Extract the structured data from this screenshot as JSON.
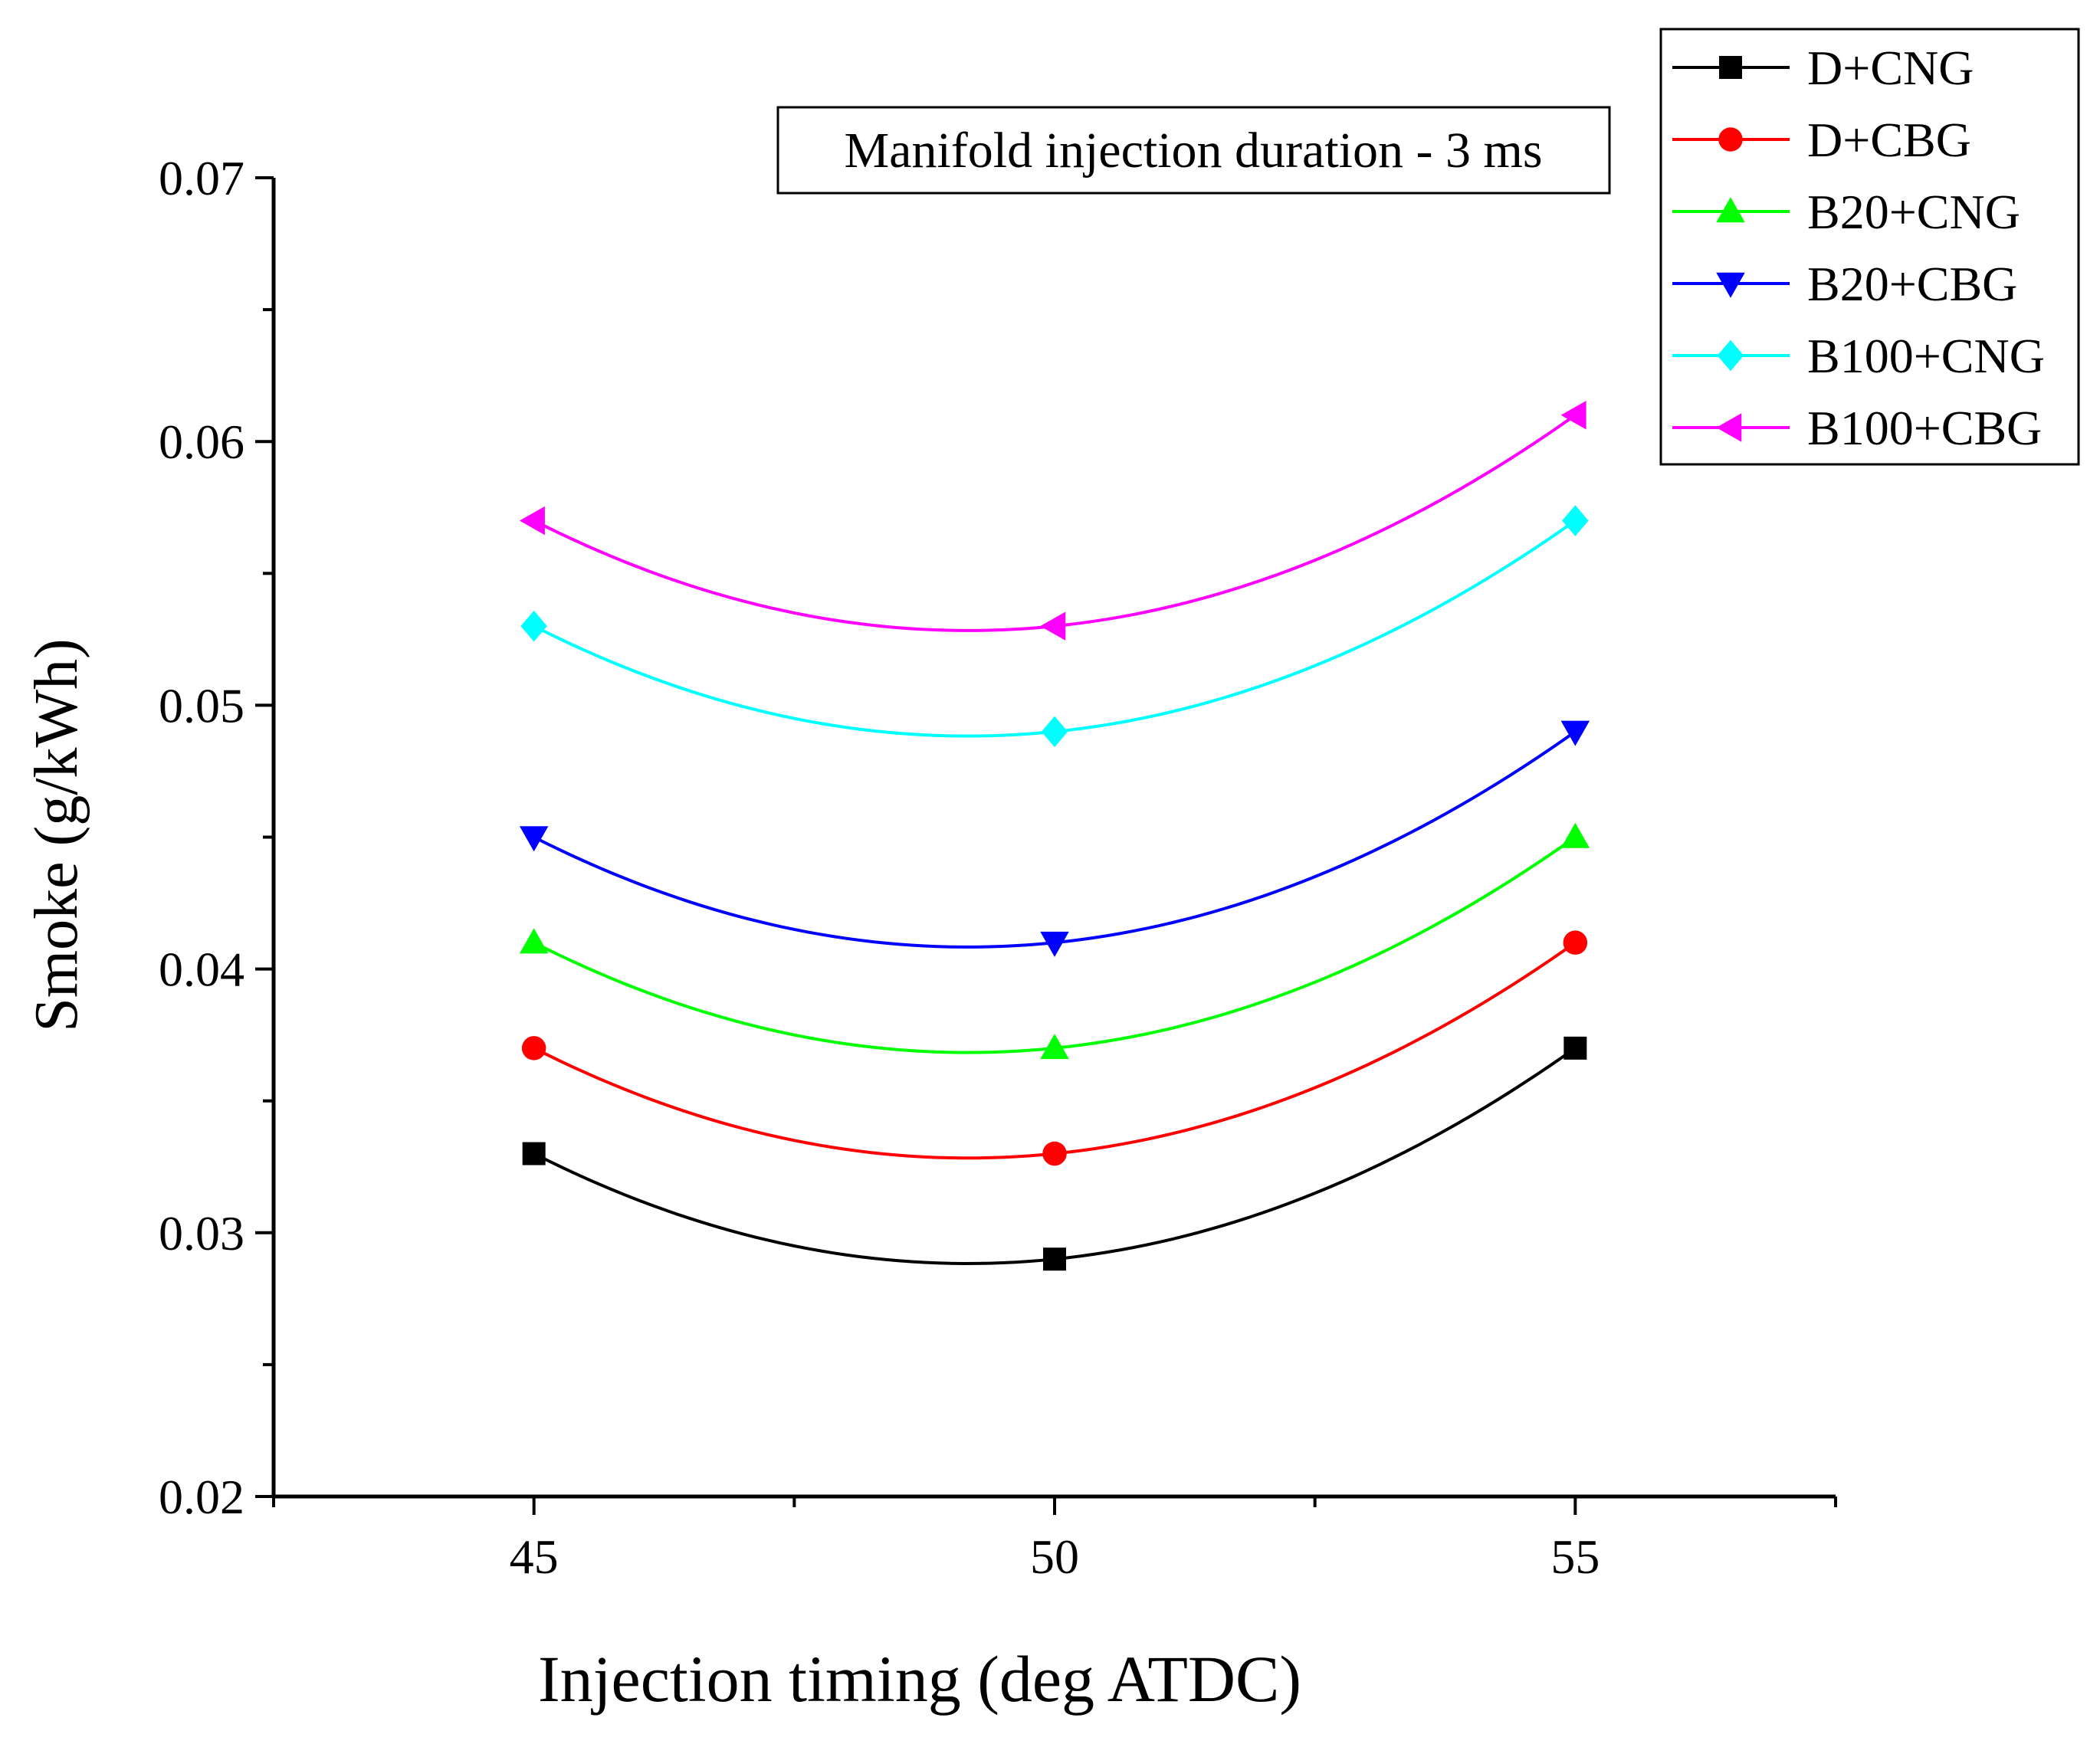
{
  "chart_data": {
    "type": "line",
    "title": "",
    "annotation": "Manifold injection duration - 3 ms",
    "xlabel": "Injection timing (deg ATDC)",
    "ylabel": "Smoke (g/kWh)",
    "x": [
      45,
      50,
      55
    ],
    "xlim": [
      42.5,
      57.5
    ],
    "ylim": [
      0.02,
      0.07
    ],
    "xticks": [
      "45",
      "50",
      "55"
    ],
    "yticks": [
      "0.02",
      "0.03",
      "0.04",
      "0.05",
      "0.06",
      "0.07"
    ],
    "grid": false,
    "legend_position": "top-right",
    "series": [
      {
        "name": "D+CNG",
        "marker": "square",
        "color": "#000000",
        "values": [
          0.033,
          0.029,
          0.037
        ]
      },
      {
        "name": "D+CBG",
        "marker": "circle",
        "color": "#ff0000",
        "values": [
          0.037,
          0.033,
          0.041
        ]
      },
      {
        "name": "B20+CNG",
        "marker": "triangle-up",
        "color": "#00ff00",
        "values": [
          0.041,
          0.037,
          0.045
        ]
      },
      {
        "name": "B20+CBG",
        "marker": "triangle-down",
        "color": "#0000ff",
        "values": [
          0.045,
          0.041,
          0.049
        ]
      },
      {
        "name": "B100+CNG",
        "marker": "diamond",
        "color": "#00ffff",
        "values": [
          0.053,
          0.049,
          0.057
        ]
      },
      {
        "name": "B100+CBG",
        "marker": "triangle-left",
        "color": "#ff00ff",
        "values": [
          0.057,
          0.053,
          0.061
        ]
      }
    ]
  }
}
